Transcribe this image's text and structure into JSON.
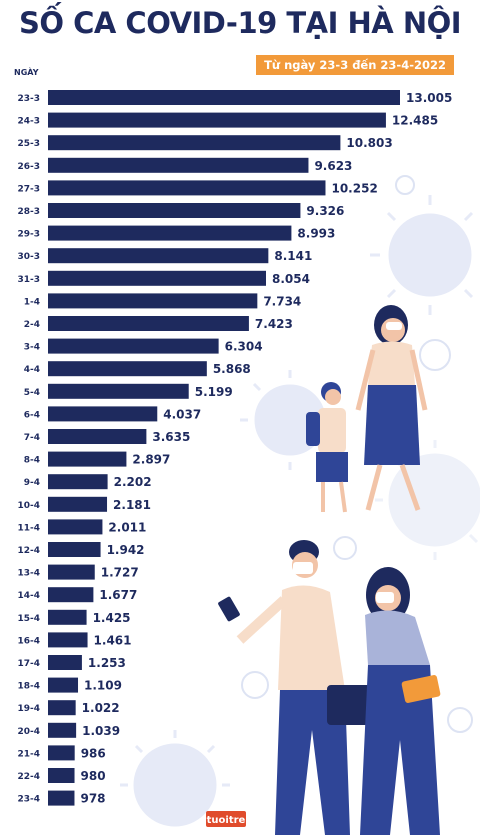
{
  "title": "SỐ CA COVID-19 TẠI HÀ NỘI",
  "subtitle": "Từ ngày 23-3 đến 23-4-2022",
  "logo_text": "tuoitre",
  "colors": {
    "bar": "#1e2a5e",
    "accent": "#f29a3a",
    "virus": "#e3e8f6"
  },
  "chart_data": {
    "type": "bar",
    "orientation": "horizontal",
    "ylabel": "NGÀY",
    "categories": [
      "23-3",
      "24-3",
      "25-3",
      "26-3",
      "27-3",
      "28-3",
      "29-3",
      "30-3",
      "31-3",
      "1-4",
      "2-4",
      "3-4",
      "4-4",
      "5-4",
      "6-4",
      "7-4",
      "8-4",
      "9-4",
      "10-4",
      "11-4",
      "12-4",
      "13-4",
      "14-4",
      "15-4",
      "16-4",
      "17-4",
      "18-4",
      "19-4",
      "20-4",
      "21-4",
      "22-4",
      "23-4"
    ],
    "values": [
      13005,
      12485,
      10803,
      9623,
      10252,
      9326,
      8993,
      8141,
      8054,
      7734,
      7423,
      6304,
      5868,
      5199,
      4037,
      3635,
      2897,
      2202,
      2181,
      2011,
      1942,
      1727,
      1677,
      1425,
      1461,
      1253,
      1109,
      1022,
      1039,
      986,
      980,
      978
    ],
    "labels": [
      "13.005",
      "12.485",
      "10.803",
      "9.623",
      "10.252",
      "9.326",
      "8.993",
      "8.141",
      "8.054",
      "7.734",
      "7.423",
      "6.304",
      "5.868",
      "5.199",
      "4.037",
      "3.635",
      "2.897",
      "2.202",
      "2.181",
      "2.011",
      "1.942",
      "1.727",
      "1.677",
      "1.425",
      "1.461",
      "1.253",
      "1.109",
      "1.022",
      "1.039",
      "986",
      "980",
      "978"
    ]
  }
}
